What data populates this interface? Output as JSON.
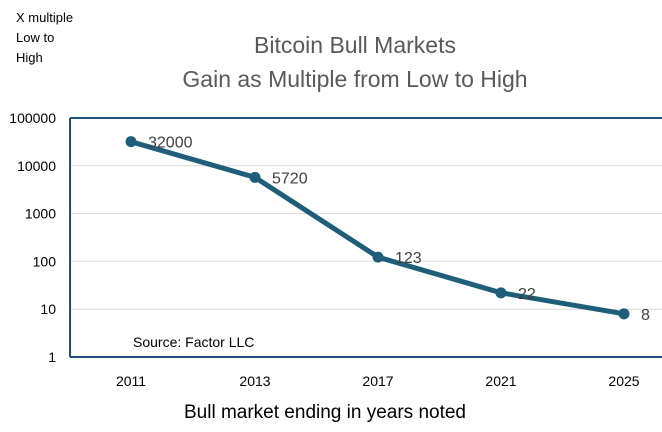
{
  "chart_data": {
    "type": "line",
    "title": "Bitcoin Bull Markets",
    "subtitle": "Gain as Multiple from Low to High",
    "ylabel": "X multiple Low to High",
    "xlabel": "Bull market ending in years noted",
    "yscale": "log",
    "ylim": [
      1,
      100000
    ],
    "yticks": [
      "1",
      "10",
      "100",
      "1000",
      "10000",
      "100000"
    ],
    "categories": [
      "2011",
      "2013",
      "2017",
      "2021",
      "2025"
    ],
    "series": [
      {
        "values": [
          32000,
          5720,
          123,
          22,
          8
        ],
        "color": "#1f5e7a"
      }
    ],
    "data_labels": [
      "32000",
      "5720",
      "123",
      "22",
      "8"
    ],
    "annotation": "Source: Factor LLC",
    "grid": true,
    "legend": "none"
  }
}
